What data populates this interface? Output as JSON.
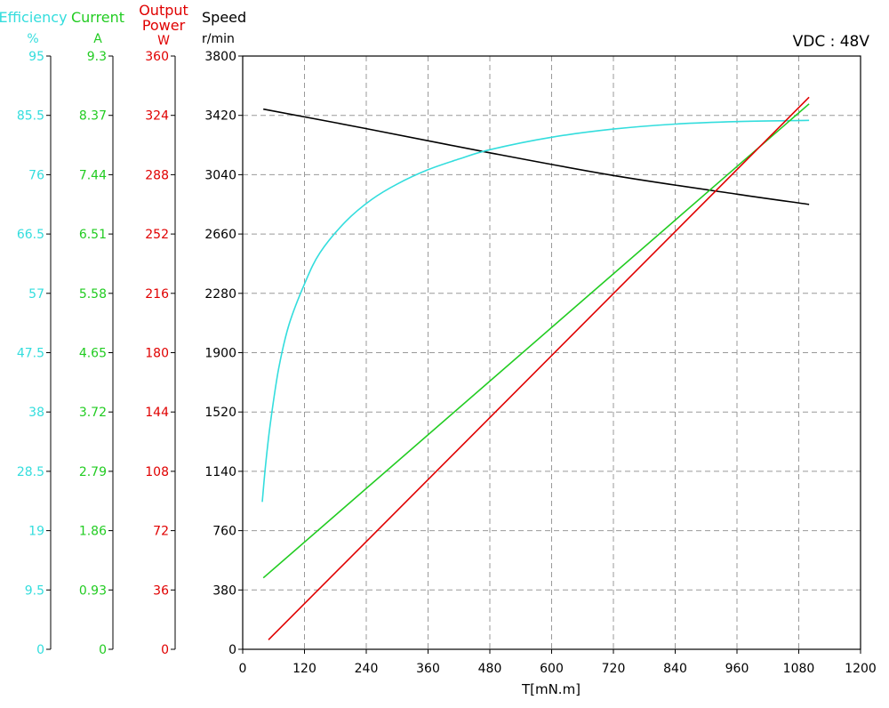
{
  "chart_data": {
    "type": "line",
    "annotation": "VDC : 48V",
    "xlabel": "T[mN.m]",
    "xlim": [
      0,
      1200
    ],
    "x_ticks": [
      "0",
      "120",
      "240",
      "360",
      "480",
      "600",
      "720",
      "840",
      "960",
      "1080",
      "1200"
    ],
    "grid": true,
    "axes": [
      {
        "key": "speed",
        "title": [
          "Speed"
        ],
        "unit": "r/min",
        "range": [
          0,
          3800
        ],
        "color": "#000000",
        "ticks": [
          "0",
          "380",
          "760",
          "1140",
          "1520",
          "1900",
          "2280",
          "2660",
          "3040",
          "3420",
          "3800"
        ]
      },
      {
        "key": "power",
        "title": [
          "Output",
          "Power"
        ],
        "unit": "W",
        "range": [
          0,
          360
        ],
        "color": "#e00000",
        "ticks": [
          "0",
          "36",
          "72",
          "108",
          "144",
          "180",
          "216",
          "252",
          "288",
          "324",
          "360"
        ]
      },
      {
        "key": "current",
        "title": [
          "Current"
        ],
        "unit": "A",
        "range": [
          0,
          9.3
        ],
        "color": "#22cc22",
        "ticks": [
          "0",
          "0.93",
          "1.86",
          "2.79",
          "3.72",
          "4.65",
          "5.58",
          "6.51",
          "7.44",
          "8.37",
          "9.3"
        ]
      },
      {
        "key": "efficiency",
        "title": [
          "Efficiency"
        ],
        "unit": "%",
        "range": [
          0,
          95
        ],
        "color": "#33dddd",
        "ticks": [
          "0",
          "9.5",
          "19",
          "28.5",
          "38",
          "47.5",
          "57",
          "66.5",
          "76",
          "85.5",
          "95"
        ]
      }
    ],
    "series": [
      {
        "axis": "speed",
        "color": "#000000",
        "points": [
          [
            40,
            3460
          ],
          [
            240,
            3335
          ],
          [
            480,
            3180
          ],
          [
            720,
            3035
          ],
          [
            960,
            2915
          ],
          [
            1100,
            2850
          ]
        ]
      },
      {
        "axis": "efficiency",
        "color": "#33dddd",
        "points": [
          [
            38,
            23.6
          ],
          [
            45,
            30
          ],
          [
            55,
            37
          ],
          [
            70,
            45
          ],
          [
            90,
            52
          ],
          [
            120,
            58.5
          ],
          [
            150,
            63.5
          ],
          [
            200,
            68.5
          ],
          [
            250,
            72
          ],
          [
            300,
            74.5
          ],
          [
            360,
            76.8
          ],
          [
            420,
            78.5
          ],
          [
            480,
            80
          ],
          [
            600,
            82
          ],
          [
            720,
            83.3
          ],
          [
            840,
            84.1
          ],
          [
            960,
            84.5
          ],
          [
            1100,
            84.7
          ]
        ]
      },
      {
        "axis": "current",
        "color": "#22cc22",
        "points": [
          [
            40,
            1.12
          ],
          [
            1100,
            8.55
          ]
        ]
      },
      {
        "axis": "power",
        "color": "#e00000",
        "points": [
          [
            50,
            5.8
          ],
          [
            1100,
            335
          ]
        ]
      }
    ]
  }
}
